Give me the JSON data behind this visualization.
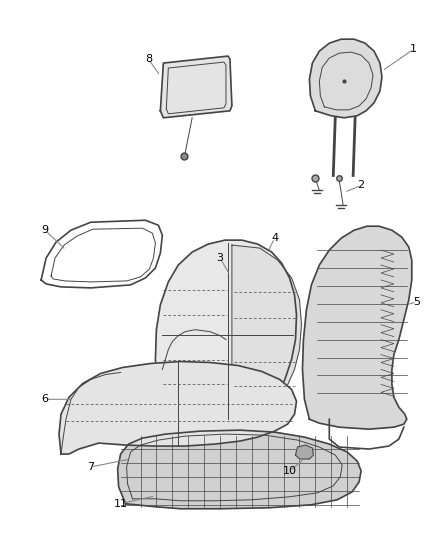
{
  "background_color": "#ffffff",
  "line_color": "#444444",
  "label_color": "#000000",
  "fig_width": 4.38,
  "fig_height": 5.33,
  "dpi": 100,
  "seat_back_fill": "#e8e8e8",
  "seat_frame_fill": "#d0d0d0",
  "seat_cushion_fill": "#e0e0e0",
  "seat_base_fill": "#c8c8c8",
  "headrest_fill": "#dcdcdc",
  "monitor_fill": "#e4e4e4",
  "mat_fill": "#f0f0f0"
}
